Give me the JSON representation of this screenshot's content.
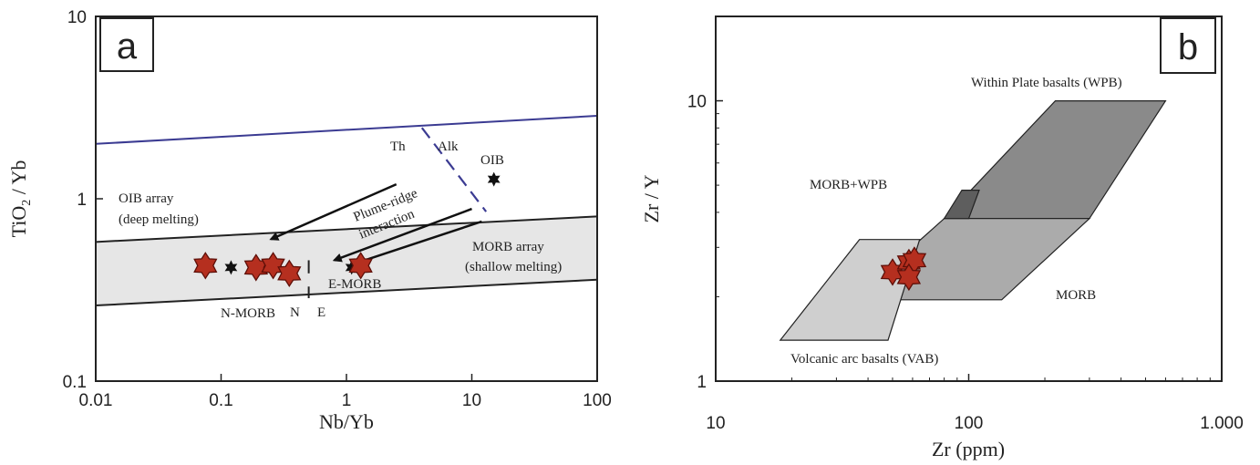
{
  "chart_data": [
    {
      "type": "scatter",
      "panel_label": "a",
      "xlabel": "Nb/Yb",
      "ylabel_parts": [
        "TiO",
        "2",
        " / Yb"
      ],
      "x_scale": "log",
      "y_scale": "log",
      "xlim": [
        0.01,
        100
      ],
      "ylim": [
        0.1,
        10
      ],
      "x_ticks": [
        {
          "value": 0.01,
          "label": "0.01"
        },
        {
          "value": 0.1,
          "label": "0.1"
        },
        {
          "value": 1,
          "label": "1"
        },
        {
          "value": 10,
          "label": "10"
        },
        {
          "value": 100,
          "label": "100"
        }
      ],
      "y_ticks": [
        {
          "value": 0.1,
          "label": "0.1"
        },
        {
          "value": 1,
          "label": "1"
        },
        {
          "value": 10,
          "label": "10"
        }
      ],
      "grid": false,
      "mantle_array": {
        "lower": [
          [
            0.01,
            0.26
          ],
          [
            100,
            0.36
          ]
        ],
        "upper": [
          [
            0.01,
            0.58
          ],
          [
            100,
            0.8
          ]
        ]
      },
      "boundary_line": [
        [
          0.01,
          2.0
        ],
        [
          100,
          2.85
        ]
      ],
      "th_alk_divider": [
        [
          4,
          2.45
        ],
        [
          13,
          0.85
        ]
      ],
      "n_e_divider_value": 0.5,
      "arrows": [
        {
          "from": [
            2.5,
            1.2
          ],
          "to": [
            0.25,
            0.6
          ]
        },
        {
          "from": [
            10,
            0.88
          ],
          "to": [
            0.8,
            0.46
          ]
        },
        {
          "from": [
            12,
            0.75
          ],
          "to": [
            1.15,
            0.44
          ]
        }
      ],
      "samples": [
        {
          "x": 0.075,
          "y": 0.43
        },
        {
          "x": 0.19,
          "y": 0.42
        },
        {
          "x": 0.26,
          "y": 0.43
        },
        {
          "x": 0.35,
          "y": 0.39
        },
        {
          "x": 1.3,
          "y": 0.43
        }
      ],
      "reference_points": [
        {
          "name": "N-MORB",
          "x": 0.12,
          "y": 0.42
        },
        {
          "name": "E-MORB",
          "x": 1.1,
          "y": 0.42
        },
        {
          "name": "OIB",
          "x": 15,
          "y": 1.28
        }
      ],
      "labels": {
        "oib_array_1": "OIB array",
        "oib_array_2": "(deep melting)",
        "morb_array_1": "MORB array",
        "morb_array_2": "(shallow melting)",
        "plume_1": "Plume-ridge",
        "plume_2": "interaction",
        "th": "Th",
        "alk": "Alk",
        "oib": "OIB",
        "n_morb": "N-MORB",
        "e_morb": "E-MORB",
        "n": "N",
        "e": "E"
      }
    },
    {
      "type": "scatter",
      "panel_label": "b",
      "xlabel": "Zr (ppm)",
      "ylabel": "Zr / Y",
      "x_scale": "log",
      "y_scale": "log",
      "xlim": [
        10,
        1000
      ],
      "ylim": [
        1,
        20
      ],
      "x_ticks": [
        {
          "value": 10,
          "label": "10"
        },
        {
          "value": 100,
          "label": "100"
        },
        {
          "value": 1000,
          "label": "1.000"
        }
      ],
      "y_ticks": [
        {
          "value": 1,
          "label": "1"
        },
        {
          "value": 10,
          "label": "10"
        }
      ],
      "grid": false,
      "fields": [
        {
          "name": "wpb",
          "label": "Within Plate basalts (WPB)",
          "color": "#8a8a8a",
          "polygon": [
            [
              80,
              3.8
            ],
            [
              220,
              10
            ],
            [
              600,
              10
            ],
            [
              300,
              3.8
            ]
          ]
        },
        {
          "name": "morb",
          "label": "MORB",
          "color": "#ababab",
          "polygon": [
            [
              35,
              1.95
            ],
            [
              80,
              3.8
            ],
            [
              300,
              3.8
            ],
            [
              135,
              1.95
            ]
          ]
        },
        {
          "name": "vab",
          "label": "Volcanic arc basalts (VAB)",
          "color": "#cfcfcf",
          "polygon": [
            [
              18,
              1.4
            ],
            [
              37,
              3.2
            ],
            [
              64,
              3.2
            ],
            [
              48,
              1.4
            ]
          ]
        },
        {
          "name": "overlap",
          "label": "",
          "color": "#5e5e5e",
          "polygon": [
            [
              80,
              3.8
            ],
            [
              94,
              4.8
            ],
            [
              110,
              4.8
            ],
            [
              100,
              3.8
            ]
          ]
        }
      ],
      "field_labels": {
        "wpb": "Within Plate basalts (WPB)",
        "morb_wpb": "MORB+WPB",
        "morb": "MORB",
        "vab": "Volcanic arc basalts (VAB)"
      },
      "samples": [
        {
          "x": 50,
          "y": 2.45
        },
        {
          "x": 58,
          "y": 2.65
        },
        {
          "x": 61,
          "y": 2.7
        },
        {
          "x": 58,
          "y": 2.35
        }
      ]
    }
  ],
  "colors": {
    "sample_fill": "#b52f1f",
    "sample_stroke": "#5e0f08",
    "boundary_line": "#3b3b92",
    "array_fill": "#e6e6e6"
  }
}
